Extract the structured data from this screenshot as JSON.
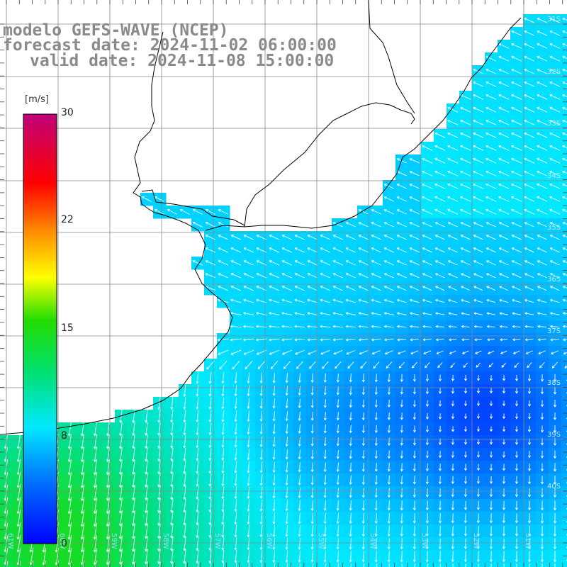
{
  "header": {
    "title": "modelo GEFS-WAVE (NCEP)",
    "forecast": "forecast date: 2024-11-02 06:00:00",
    "valid": "valid date: 2024-11-08 15:00:00"
  },
  "colorbar": {
    "unit": "[m/s]",
    "ticks": [
      "30",
      "22",
      "15",
      "8",
      "0"
    ],
    "tick_values": [
      30,
      22,
      15,
      8,
      0
    ]
  },
  "lat_labels": [
    "31S",
    "32S",
    "33S",
    "34S",
    "35S",
    "36S",
    "37S",
    "38S",
    "39S",
    "40S"
  ],
  "lon_labels": [
    "61W",
    "60W",
    "59W",
    "58W",
    "57W",
    "56W",
    "55W",
    "54W",
    "53W",
    "52W",
    "51W"
  ],
  "map_extent": {
    "lon_min": -61.5,
    "lon_max": -50.7,
    "lat_min": -41.2,
    "lat_max": -30.8
  },
  "colors": {
    "land": "#ffffff",
    "grid": "#888888",
    "coast": "#000000",
    "arrow": "#ffffff"
  }
}
